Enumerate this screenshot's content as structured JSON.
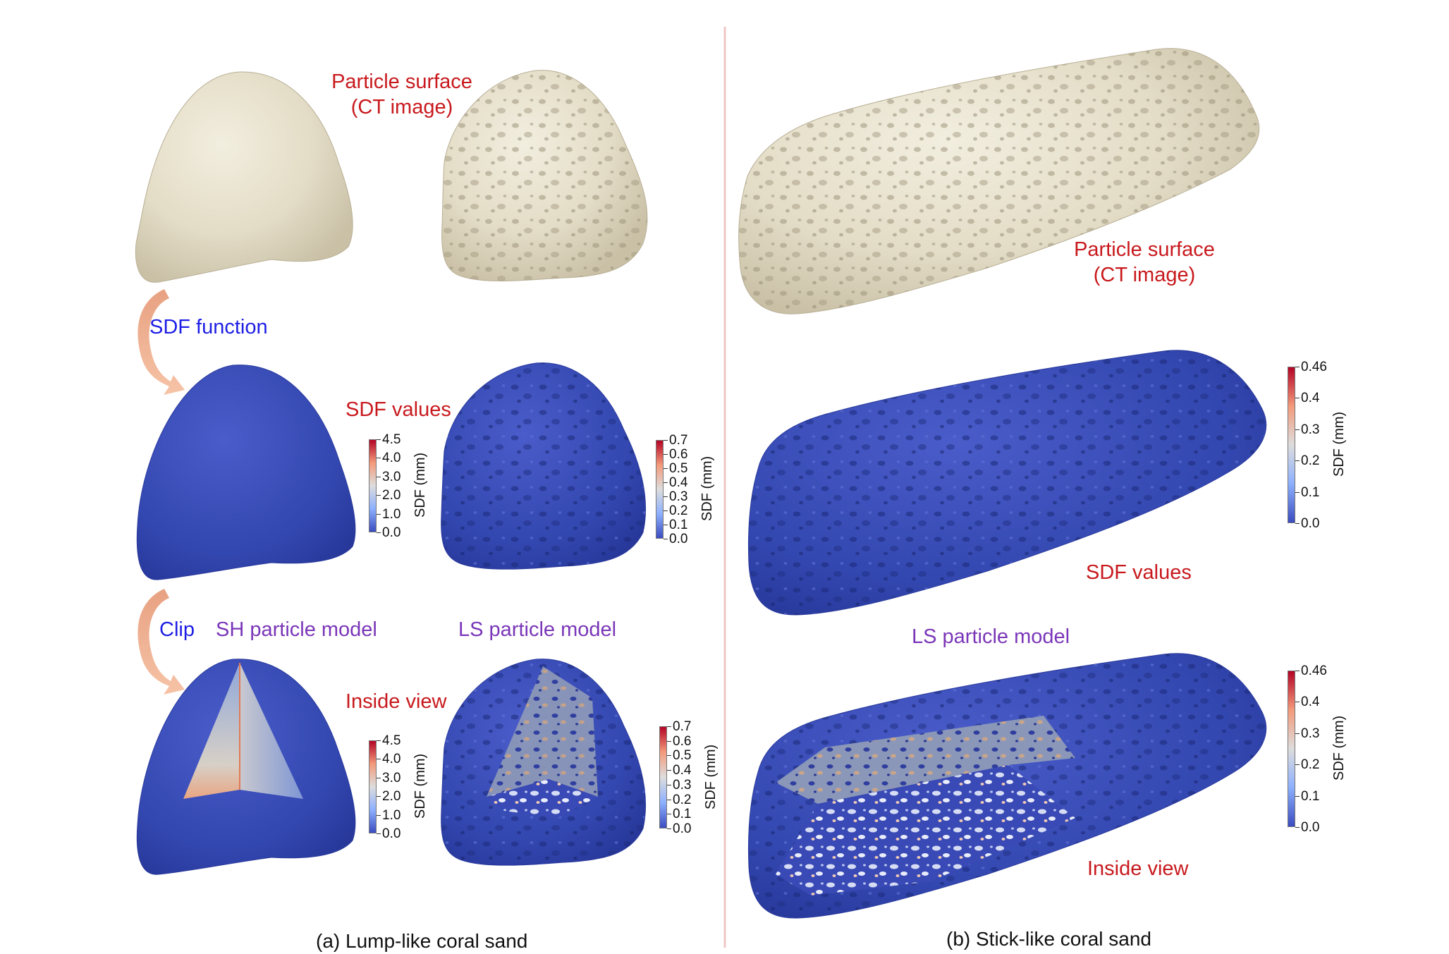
{
  "colors": {
    "label_red": "#c8191d",
    "label_blue": "#1e1ee6",
    "label_purple": "#7a36b8",
    "particle_surface": "#e6e0cc",
    "sdf_low": "#3b4cc0",
    "sdf_high": "#b40426",
    "arrow": "#f0a07a",
    "divider": "#f2c4c4"
  },
  "panel_a": {
    "surface_label": "Particle surface\n(CT image)",
    "sdf_function_label": "SDF function",
    "sdf_values_label": "SDF values",
    "clip_label": "Clip",
    "sh_model_label": "SH particle model",
    "ls_model_label": "LS particle model",
    "inside_view_label": "Inside view",
    "caption": "(a) Lump-like coral sand",
    "colorbars": {
      "sh_values": {
        "title": "SDF (mm)",
        "ticks": [
          "4.5",
          "4.0",
          "3.0",
          "2.0",
          "1.0",
          "0.0"
        ]
      },
      "ls_values": {
        "title": "SDF (mm)",
        "ticks": [
          "0.7",
          "0.6",
          "0.5",
          "0.4",
          "0.3",
          "0.2",
          "0.1",
          "0.0"
        ]
      },
      "sh_inside": {
        "title": "SDF (mm)",
        "ticks": [
          "4.5",
          "4.0",
          "3.0",
          "2.0",
          "1.0",
          "0.0"
        ]
      },
      "ls_inside": {
        "title": "SDF (mm)",
        "ticks": [
          "0.7",
          "0.6",
          "0.5",
          "0.4",
          "0.3",
          "0.2",
          "0.1",
          "0.0"
        ]
      }
    }
  },
  "panel_b": {
    "surface_label": "Particle surface\n(CT image)",
    "sdf_values_label": "SDF values",
    "ls_model_label": "LS particle model",
    "inside_view_label": "Inside view",
    "caption": "(b) Stick-like coral sand",
    "colorbars": {
      "values": {
        "title": "SDF (mm)",
        "ticks": [
          "0.46",
          "0.4",
          "0.3",
          "0.2",
          "0.1",
          "0.0"
        ]
      },
      "inside": {
        "title": "SDF (mm)",
        "ticks": [
          "0.46",
          "0.4",
          "0.3",
          "0.2",
          "0.1",
          "0.0"
        ]
      }
    }
  }
}
